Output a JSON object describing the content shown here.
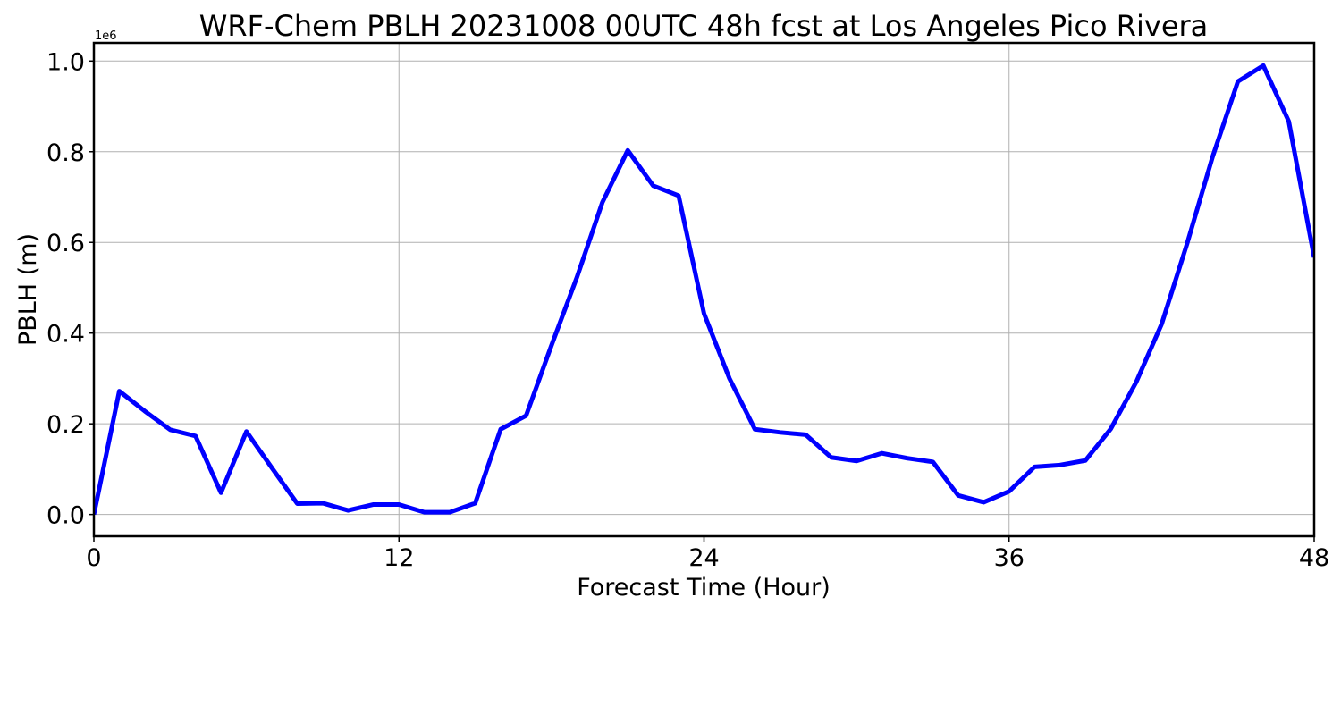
{
  "chart_data": {
    "type": "line",
    "title": "WRF-Chem PBLH  20231008 00UTC 48h fcst at Los Angeles Pico Rivera",
    "xlabel": "Forecast Time (Hour)",
    "ylabel": "PBLH  (m)",
    "y_offset_label": "1e6",
    "y_scale": 1000000,
    "xlim": [
      0,
      48
    ],
    "ylim": [
      -0.048,
      1.04
    ],
    "x_ticks": [
      0,
      12,
      24,
      36,
      48
    ],
    "x_tick_labels": [
      "0",
      "12",
      "24",
      "36",
      "48"
    ],
    "y_ticks": [
      0.0,
      0.2,
      0.4,
      0.6,
      0.8,
      1.0
    ],
    "y_tick_labels": [
      "0.0",
      "0.2",
      "0.4",
      "0.6",
      "0.8",
      "1.0"
    ],
    "grid": true,
    "series": [
      {
        "color": "#0000ff",
        "x": [
          0,
          1,
          2,
          3,
          4,
          5,
          6,
          7,
          8,
          9,
          10,
          11,
          12,
          13,
          14,
          15,
          16,
          17,
          18,
          19,
          20,
          21,
          22,
          23,
          24,
          25,
          26,
          27,
          28,
          29,
          30,
          31,
          32,
          33,
          34,
          35,
          36,
          37,
          38,
          39,
          40,
          41,
          42,
          43,
          44,
          45,
          46,
          47,
          48
        ],
        "values": [
          0.0,
          0.272,
          0.228,
          0.187,
          0.173,
          0.048,
          0.183,
          0.103,
          0.024,
          0.025,
          0.009,
          0.022,
          0.022,
          0.005,
          0.005,
          0.025,
          0.188,
          0.218,
          0.373,
          0.523,
          0.688,
          0.803,
          0.725,
          0.703,
          0.443,
          0.3,
          0.188,
          0.181,
          0.176,
          0.126,
          0.118,
          0.135,
          0.124,
          0.116,
          0.042,
          0.027,
          0.051,
          0.105,
          0.109,
          0.119,
          0.189,
          0.292,
          0.42,
          0.597,
          0.788,
          0.955,
          0.99,
          0.867,
          0.567
        ]
      }
    ]
  }
}
